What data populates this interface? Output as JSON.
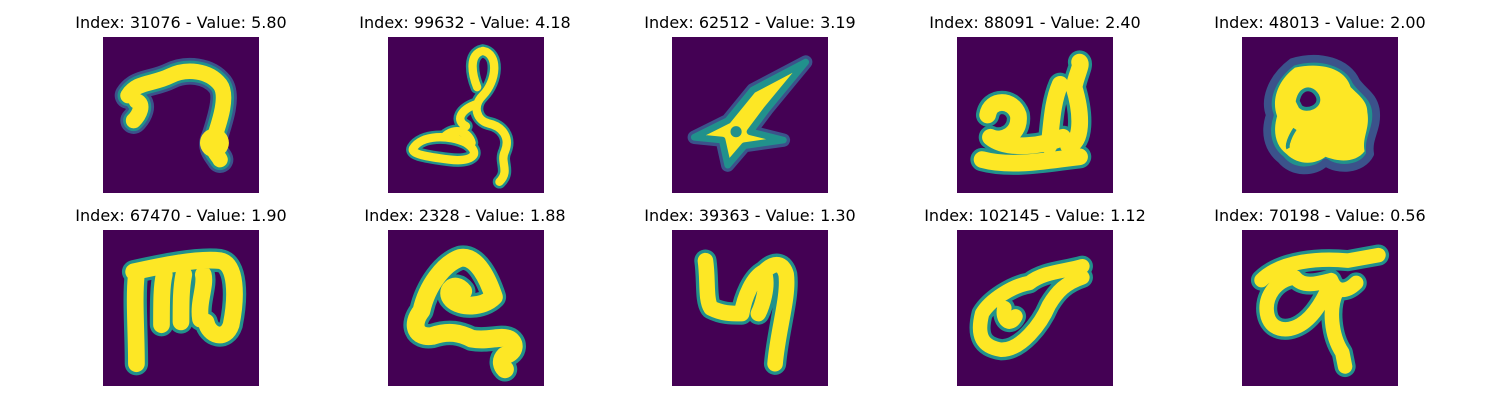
{
  "panels": [
    {
      "title": "Index: 31076 - Value: 5.80"
    },
    {
      "title": "Index: 99632 - Value: 4.18"
    },
    {
      "title": "Index: 62512 - Value: 3.19"
    },
    {
      "title": "Index: 88091 - Value: 2.40"
    },
    {
      "title": "Index: 48013 - Value: 2.00"
    },
    {
      "title": "Index: 67470 - Value: 1.90"
    },
    {
      "title": "Index: 2328 - Value: 1.88"
    },
    {
      "title": "Index: 39363 - Value: 1.30"
    },
    {
      "title": "Index: 102145 - Value: 1.12"
    },
    {
      "title": "Index: 70198 - Value: 0.56"
    }
  ],
  "colors": {
    "background": "#440154",
    "glyph_fill": "#fde725",
    "glyph_edge": "#21918c",
    "glyph_halo": "#3b528b"
  }
}
